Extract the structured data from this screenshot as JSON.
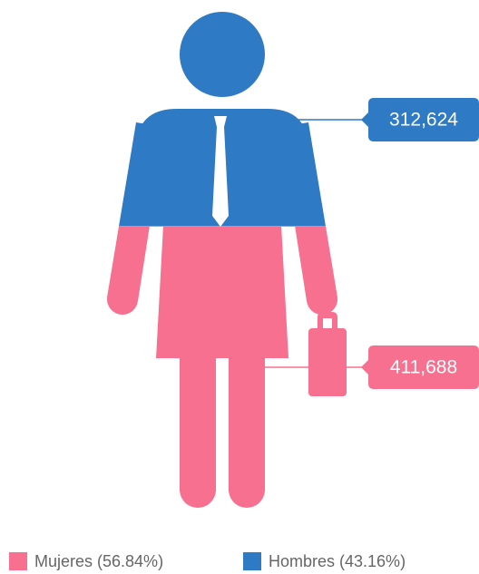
{
  "chart_data": {
    "type": "pictorial",
    "series": [
      {
        "name": "Mujeres (56.84%)",
        "color": "#f7708f",
        "values": [
          411688
        ],
        "value_labels": [
          "411,688"
        ]
      },
      {
        "name": "Hombres (43.16%)",
        "color": "#2f7ac4",
        "values": [
          312624
        ],
        "value_labels": [
          "312,624"
        ]
      }
    ]
  }
}
